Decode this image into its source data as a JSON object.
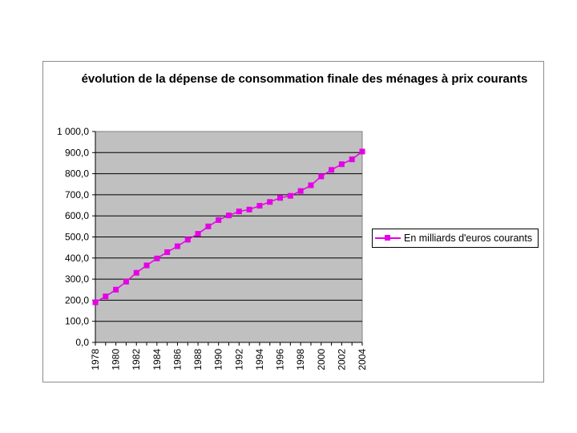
{
  "chart_data": {
    "type": "line",
    "title": "évolution de la dépense de consommation finale des ménages à prix courants",
    "xlabel": "",
    "ylabel": "",
    "ylim": [
      0,
      1000
    ],
    "yticks": [
      "0,0",
      "100,0",
      "200,0",
      "300,0",
      "400,0",
      "500,0",
      "600,0",
      "700,0",
      "800,0",
      "900,0",
      "1 000,0"
    ],
    "xticks": [
      "1978",
      "1980",
      "1982",
      "1984",
      "1986",
      "1988",
      "1990",
      "1992",
      "1994",
      "1996",
      "1998",
      "2000",
      "2002",
      "2004"
    ],
    "x": [
      1978,
      1979,
      1980,
      1981,
      1982,
      1983,
      1984,
      1985,
      1986,
      1987,
      1988,
      1989,
      1990,
      1991,
      1992,
      1993,
      1994,
      1995,
      1996,
      1997,
      1998,
      1999,
      2000,
      2001,
      2002,
      2003,
      2004
    ],
    "series": [
      {
        "name": "En milliards d'euros courants",
        "values": [
          190,
          218,
          250,
          288,
          330,
          365,
          398,
          428,
          456,
          487,
          515,
          550,
          580,
          602,
          621,
          630,
          648,
          666,
          685,
          695,
          718,
          745,
          787,
          818,
          845,
          868,
          905
        ]
      }
    ],
    "grid": true,
    "legend": "right",
    "colors": {
      "line": "#e600e6",
      "plot_background": "#c0c0c0"
    }
  }
}
